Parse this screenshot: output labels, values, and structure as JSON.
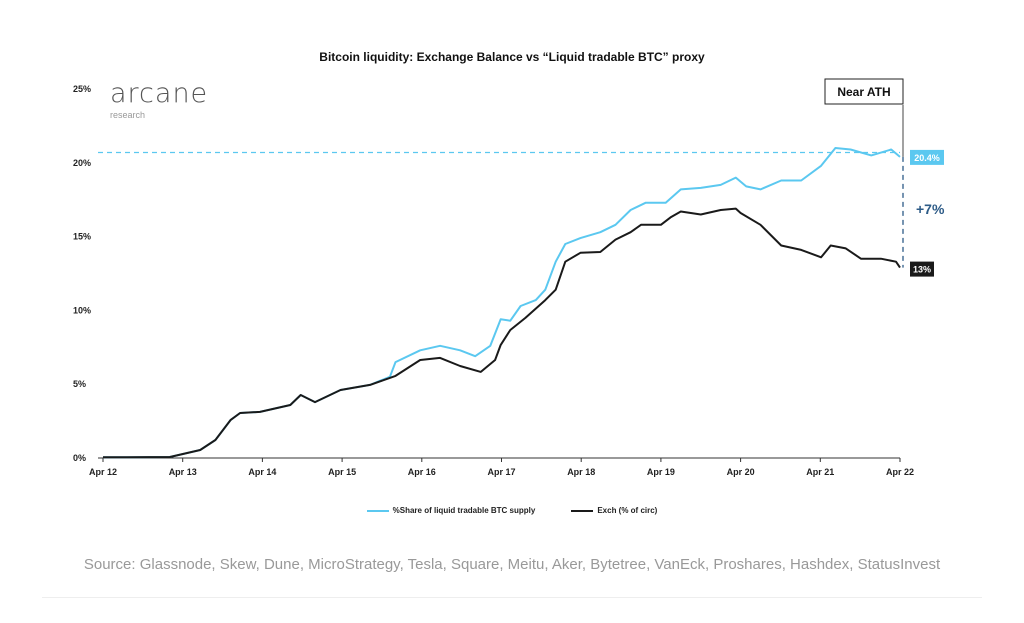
{
  "chart_data": {
    "type": "line",
    "title": "Bitcoin liquidity: Exchange Balance vs “Liquid tradable BTC” proxy",
    "xlabel": "",
    "ylabel": "",
    "x_unit": "days since Apr 12",
    "xticks": [
      "Apr 12",
      "Apr 13",
      "Apr 14",
      "Apr 15",
      "Apr 16",
      "Apr 17",
      "Apr 18",
      "Apr 19",
      "Apr 20",
      "Apr 21",
      "Apr 22"
    ],
    "yticks": [
      "0%",
      "5%",
      "10%",
      "15%",
      "20%",
      "25%"
    ],
    "ylim": [
      0,
      25
    ],
    "xlim": [
      0,
      10
    ],
    "grid": false,
    "legend_position": "bottom",
    "series": [
      {
        "name": "%Share of liquid tradable BTC supply",
        "color": "#5bc8f0",
        "x": [
          0,
          0.84,
          1.22,
          1.41,
          1.6,
          1.72,
          1.97,
          2.35,
          2.48,
          2.66,
          2.98,
          3.35,
          3.6,
          3.67,
          3.98,
          4.23,
          4.48,
          4.67,
          4.86,
          4.99,
          5.11,
          5.24,
          5.43,
          5.55,
          5.68,
          5.8,
          5.99,
          6.24,
          6.43,
          6.62,
          6.81,
          7.06,
          7.25,
          7.5,
          7.75,
          7.94,
          8.07,
          8.25,
          8.51,
          8.76,
          9.01,
          9.19,
          9.38,
          9.64,
          9.89,
          10.0
        ],
        "y": [
          0.05,
          0.07,
          0.54,
          1.22,
          2.57,
          3.05,
          3.12,
          3.59,
          4.27,
          3.79,
          4.61,
          4.95,
          5.5,
          6.5,
          7.3,
          7.6,
          7.3,
          6.9,
          7.6,
          9.4,
          9.3,
          10.3,
          10.7,
          11.4,
          13.3,
          14.5,
          14.9,
          15.3,
          15.8,
          16.8,
          17.3,
          17.3,
          18.2,
          18.3,
          18.5,
          19.0,
          18.4,
          18.2,
          18.8,
          18.8,
          19.8,
          21.0,
          20.9,
          20.5,
          20.9,
          20.4
        ]
      },
      {
        "name": "Exch (% of circ)",
        "color": "#1a1a1a",
        "x": [
          0,
          0.84,
          1.22,
          1.41,
          1.6,
          1.72,
          1.97,
          2.35,
          2.48,
          2.66,
          2.98,
          3.35,
          3.67,
          3.98,
          4.23,
          4.48,
          4.74,
          4.92,
          4.99,
          5.11,
          5.3,
          5.55,
          5.68,
          5.8,
          5.99,
          6.24,
          6.43,
          6.62,
          6.75,
          7.0,
          7.12,
          7.25,
          7.5,
          7.75,
          7.94,
          8.0,
          8.25,
          8.51,
          8.76,
          9.01,
          9.13,
          9.32,
          9.51,
          9.76,
          9.95,
          10.0
        ],
        "y": [
          0.05,
          0.07,
          0.54,
          1.22,
          2.57,
          3.05,
          3.12,
          3.59,
          4.27,
          3.79,
          4.61,
          4.95,
          5.56,
          6.64,
          6.78,
          6.23,
          5.83,
          6.64,
          7.66,
          8.67,
          9.49,
          10.7,
          11.4,
          13.3,
          13.9,
          13.96,
          14.8,
          15.3,
          15.8,
          15.8,
          16.3,
          16.7,
          16.5,
          16.8,
          16.9,
          16.6,
          15.8,
          14.4,
          14.1,
          13.6,
          14.4,
          14.2,
          13.5,
          13.5,
          13.3,
          12.9
        ]
      }
    ],
    "reference_line": {
      "y": 20.7,
      "style": "dashed"
    },
    "annotations": {
      "near_ath": "Near ATH",
      "end_blue": "20.4%",
      "end_black": "13%",
      "diff": "+7%"
    }
  },
  "logo": {
    "name": "arcane",
    "sub": "research"
  },
  "source": "Source: Glassnode, Skew, Dune, MicroStrategy, Tesla, Square, Meitu, Aker, Bytetree, VanEck, Proshares, Hashdex, StatusInvest"
}
